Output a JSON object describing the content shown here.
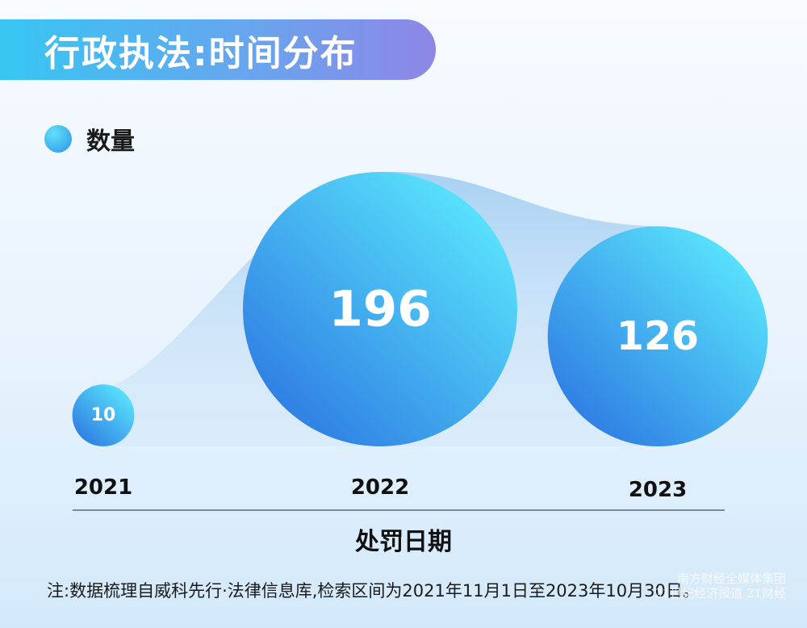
{
  "header": {
    "title": "行政执法:时间分布"
  },
  "legend": {
    "label": "数量"
  },
  "chart_data": {
    "type": "bubble",
    "categories": [
      "2021",
      "2022",
      "2023"
    ],
    "values": [
      10,
      196,
      126
    ],
    "series": [
      {
        "name": "数量",
        "values": [
          10,
          196,
          126
        ]
      }
    ],
    "xlabel": "处罚日期",
    "legend_position": "top-left",
    "colors": {
      "bubble_light": "#58e0fb",
      "bubble_dark": "#2f7ee3",
      "area": "#9ccaf0"
    }
  },
  "note": "注:数据梳理自威科先行·法律信息库,检索区间为2021年11月1日至2023年10月30日。",
  "watermark": {
    "line1": "南方财经全媒体集团",
    "line2": "21世纪经济报道 21财经"
  }
}
